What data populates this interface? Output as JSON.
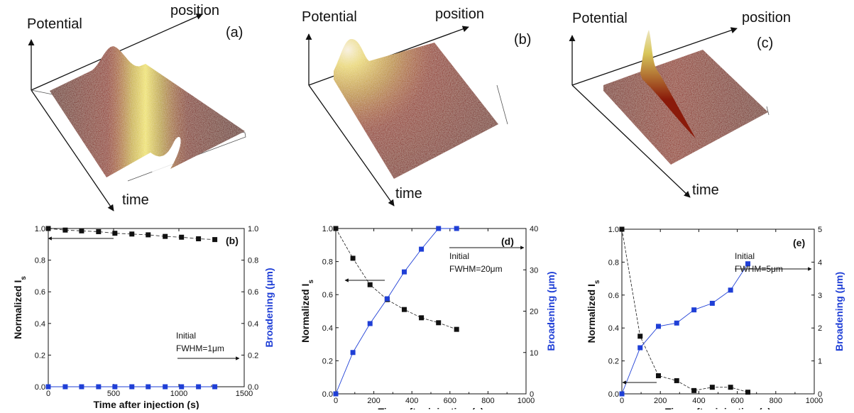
{
  "surfaces": [
    {
      "potential_label": "Potential",
      "position_label": "position",
      "time_label": "time",
      "panel_label": "(a)"
    },
    {
      "potential_label": "Potential",
      "position_label": "position",
      "time_label": "time",
      "panel_label": "(b)"
    },
    {
      "potential_label": "Potential",
      "position_label": "position",
      "time_label": "time",
      "panel_label": "(c)"
    }
  ],
  "colors": {
    "left_series": "#111111",
    "right_series": "#1f3fd6",
    "right_axis_label": "#1f3fd6",
    "surface_dark": "#7a1208",
    "surface_peak": "#e6e04a"
  },
  "chart_data": [
    {
      "type": "line",
      "panel_label": "(b)",
      "xlabel": "Time after injection (s)",
      "ylabel_left": "Normalized I",
      "ylabel_left_sub": "s",
      "ylabel_right": "Broadening (μm)",
      "xlim": [
        0,
        1500
      ],
      "ylim_left": [
        0.0,
        1.0
      ],
      "ylim_right": [
        0.0,
        1.0
      ],
      "xticks": [
        "0",
        "500",
        "1000",
        "1500"
      ],
      "yticks_left": [
        "0.0",
        "0.2",
        "0.4",
        "0.6",
        "0.8",
        "1.0"
      ],
      "yticks_right": [
        "0.0",
        "0.2",
        "0.4",
        "0.6",
        "0.8",
        "1.0"
      ],
      "annotation_lines": [
        "Initial",
        "FWHM=1μm"
      ],
      "series": [
        {
          "axis": "left",
          "marker": "square",
          "x": [
            0,
            130,
            255,
            385,
            510,
            640,
            765,
            895,
            1020,
            1150,
            1275
          ],
          "y": [
            1.0,
            0.99,
            0.985,
            0.98,
            0.97,
            0.965,
            0.96,
            0.95,
            0.945,
            0.935,
            0.93
          ]
        },
        {
          "axis": "right",
          "marker": "square",
          "x": [
            0,
            130,
            255,
            385,
            510,
            640,
            765,
            895,
            1020,
            1150,
            1275
          ],
          "y": [
            0,
            0,
            0,
            0,
            0,
            0,
            0,
            0,
            0,
            0,
            0
          ]
        }
      ]
    },
    {
      "type": "line",
      "panel_label": "(d)",
      "xlabel": "Time after injection (s)",
      "ylabel_left": "Normalized I",
      "ylabel_left_sub": "s",
      "ylabel_right": "Broadening (μm)",
      "xlim": [
        0,
        1000
      ],
      "ylim_left": [
        0.0,
        1.0
      ],
      "ylim_right": [
        0,
        40
      ],
      "xticks": [
        "0",
        "200",
        "400",
        "600",
        "800",
        "1000"
      ],
      "yticks_left": [
        "0.0",
        "0.2",
        "0.4",
        "0.6",
        "0.8",
        "1.0"
      ],
      "yticks_right": [
        "0",
        "10",
        "20",
        "30",
        "40"
      ],
      "annotation_lines": [
        "Initial",
        "FWHM=20μm"
      ],
      "series": [
        {
          "axis": "left",
          "marker": "square",
          "x": [
            0,
            90,
            180,
            270,
            360,
            450,
            540,
            635
          ],
          "y": [
            1.0,
            0.82,
            0.66,
            0.57,
            0.51,
            0.46,
            0.43,
            0.39
          ]
        },
        {
          "axis": "right",
          "marker": "square",
          "x": [
            0,
            90,
            180,
            270,
            360,
            450,
            540,
            635
          ],
          "y": [
            0,
            10,
            17,
            23,
            29.5,
            35,
            40,
            40
          ]
        }
      ]
    },
    {
      "type": "line",
      "panel_label": "(e)",
      "xlabel": "Time after injection (s)",
      "ylabel_left": "Normalized I",
      "ylabel_left_sub": "s",
      "ylabel_right": "Broadening (μm)",
      "xlim": [
        0,
        1000
      ],
      "ylim_left": [
        0.0,
        1.0
      ],
      "ylim_right": [
        0,
        5
      ],
      "xticks": [
        "0",
        "200",
        "400",
        "600",
        "800",
        "1000"
      ],
      "yticks_left": [
        "0.0",
        "0.2",
        "0.4",
        "0.6",
        "0.8",
        "1.0"
      ],
      "yticks_right": [
        "0",
        "1",
        "2",
        "3",
        "4",
        "5"
      ],
      "annotation_lines": [
        "Initial",
        "FWHM=5μm"
      ],
      "series": [
        {
          "axis": "left",
          "marker": "square",
          "x": [
            0,
            95,
            190,
            285,
            375,
            470,
            565,
            655
          ],
          "y": [
            1.0,
            0.35,
            0.11,
            0.08,
            0.02,
            0.04,
            0.04,
            0.01
          ]
        },
        {
          "axis": "right",
          "marker": "square",
          "x": [
            0,
            95,
            190,
            285,
            375,
            470,
            565,
            655
          ],
          "y": [
            0,
            1.4,
            2.05,
            2.15,
            2.55,
            2.75,
            3.15,
            3.95
          ]
        }
      ]
    }
  ]
}
